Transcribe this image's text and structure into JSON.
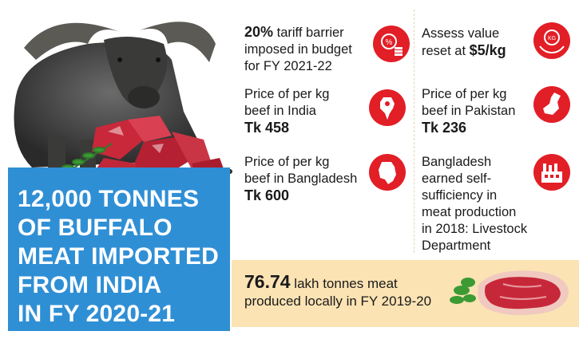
{
  "headline": {
    "lines": [
      "12,000 TONNES",
      "OF BUFFALO",
      "MEAT IMPORTED",
      "FROM INDIA",
      "IN FY 2020-21"
    ]
  },
  "facts": {
    "tariff": {
      "bold": "20%",
      "rest1": " tariff barrier",
      "line2": "imposed in budget",
      "line3": "for FY 2021-22",
      "icon": "percent-coins-icon"
    },
    "assess": {
      "line1": "Assess value",
      "line2_pre": "reset at ",
      "line2_bold": "$5/kg",
      "icon": "kg-weight-hands-icon"
    },
    "india": {
      "line1": "Price of per kg",
      "line2": "beef in India",
      "value": "Tk 458",
      "icon": "india-map-icon"
    },
    "pakistan": {
      "line1": "Price of per kg",
      "line2": "beef in Pakistan",
      "value": "Tk 236",
      "icon": "pakistan-map-icon"
    },
    "bangladesh": {
      "line1": "Price of per kg",
      "line2": "beef in Bangladesh",
      "value": "Tk 600",
      "icon": "bangladesh-map-icon"
    },
    "self_sufficiency": {
      "lines": [
        "Bangladesh",
        "earned self-",
        "sufficiency in",
        "meat production",
        "in 2018: Livestock",
        "Department"
      ],
      "icon": "factory-icon"
    }
  },
  "band": {
    "number": "76.74",
    "rest1": " lakh tonnes meat",
    "line2": "produced locally in FY 2019-20"
  },
  "colors": {
    "headline_bg": "#2f8fd5",
    "icon_red": "#e21e26",
    "band_bg": "#fbe3b4"
  }
}
